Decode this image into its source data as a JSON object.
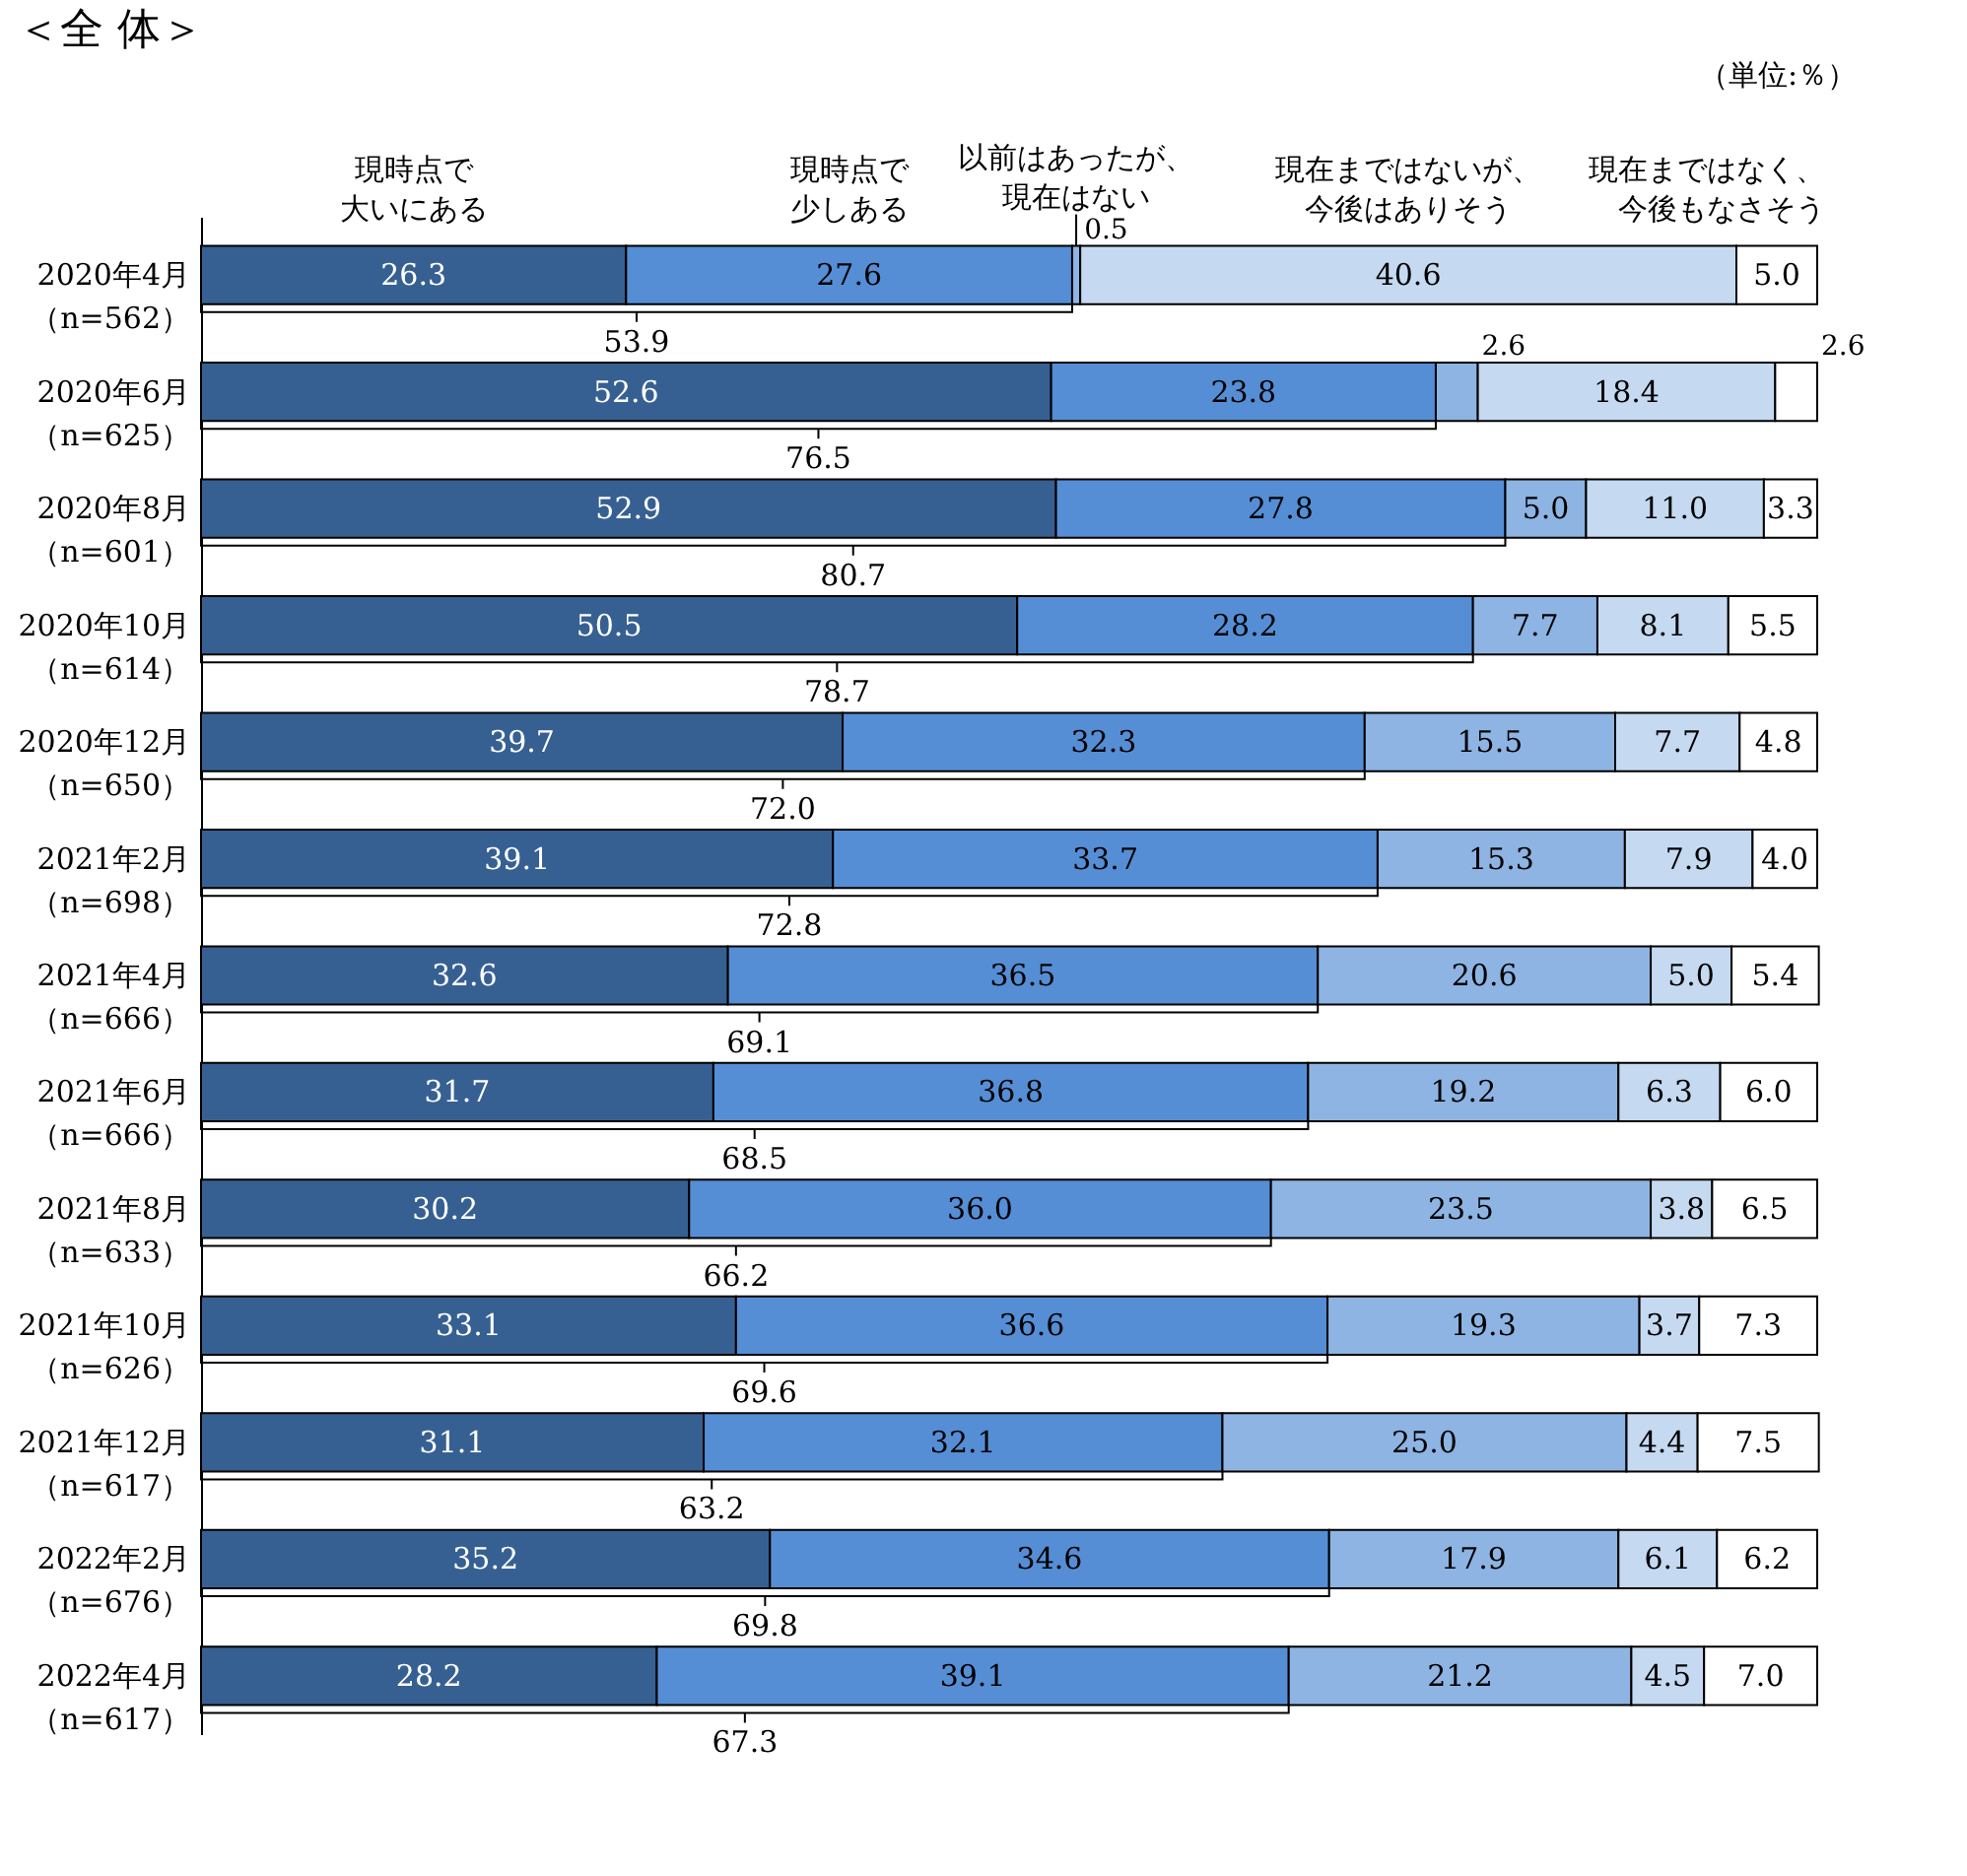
{
  "chart_data": {
    "type": "bar",
    "orientation": "horizontal",
    "stacked": true,
    "title": "＜全 体＞",
    "tick_labels": "y",
    "xlim": [
      0,
      100
    ],
    "categories": [
      "2020年4月（n=562）",
      "2020年6月（n=625）",
      "2020年8月（n=601）",
      "2020年10月（n=614）",
      "2020年12月（n=650）",
      "2021年2月（n=698）",
      "2021年4月（n=666）",
      "2021年6月（n=666）",
      "2021年8月（n=633）",
      "2021年10月（n=626）",
      "2021年12月（n=617）",
      "2022年2月（n=676）",
      "2022年4月（n=617）"
    ],
    "series": [
      {
        "name": "現時点で大いにある",
        "color": "#376092",
        "values": [
          26.3,
          52.6,
          52.9,
          50.5,
          39.7,
          39.1,
          32.6,
          31.7,
          30.2,
          33.1,
          31.1,
          35.2,
          28.2
        ],
        "value_labels": [
          "26.3",
          "52.6",
          "52.9",
          "50.5",
          "39.7",
          "39.1",
          "32.6",
          "31.7",
          "30.2",
          "33.1",
          "31.1",
          "35.2",
          "28.2"
        ]
      },
      {
        "name": "現時点で少しある",
        "color": "#558ed5",
        "values": [
          27.6,
          23.8,
          27.8,
          28.2,
          32.3,
          33.7,
          36.5,
          36.8,
          36.0,
          36.6,
          32.1,
          34.6,
          39.1
        ],
        "value_labels": [
          "27.6",
          "23.8",
          "27.8",
          "28.2",
          "32.3",
          "33.7",
          "36.5",
          "36.8",
          "36.0",
          "36.6",
          "32.1",
          "34.6",
          "39.1"
        ]
      },
      {
        "name": "以前はあったが、現在はない",
        "color": "#8db4e2",
        "values": [
          0.5,
          2.6,
          5.0,
          7.7,
          15.5,
          15.3,
          20.6,
          19.2,
          23.5,
          19.3,
          25.0,
          17.9,
          21.2
        ],
        "value_labels": [
          "0.5",
          "2.6",
          "5.0",
          "7.7",
          "15.5",
          "15.3",
          "20.6",
          "19.2",
          "23.5",
          "19.3",
          "25.0",
          "17.9",
          "21.2"
        ]
      },
      {
        "name": "現在まではないが、今後はありそう",
        "color": "#c5d9f1",
        "values": [
          40.6,
          18.4,
          11.0,
          8.1,
          7.7,
          7.9,
          5.0,
          6.3,
          3.8,
          3.7,
          4.4,
          6.1,
          4.5
        ],
        "value_labels": [
          "40.6",
          "18.4",
          "11.0",
          "8.1",
          "7.7",
          "7.9",
          "5.0",
          "6.3",
          "3.8",
          "3.7",
          "4.4",
          "6.1",
          "4.5"
        ]
      },
      {
        "name": "現在まではなく、今後もなさそう",
        "color": "#ffffff",
        "values": [
          5.0,
          2.6,
          3.3,
          5.5,
          4.8,
          4.0,
          5.4,
          6.0,
          6.5,
          7.3,
          7.5,
          6.2,
          7.0
        ],
        "value_labels": [
          "5.0",
          "2.6",
          "3.3",
          "5.5",
          "4.8",
          "4.0",
          "5.4",
          "6.0",
          "6.5",
          "7.3",
          "7.5",
          "6.2",
          "7.0"
        ]
      }
    ],
    "annotations": [
      "（単位:％）",
      {
        "text": "53.9",
        "y": "2020年4月（n=562）"
      },
      {
        "text": "76.5",
        "y": "2020年6月（n=625）"
      },
      {
        "text": "80.7",
        "y": "2020年8月（n=601）"
      },
      {
        "text": "78.7",
        "y": "2020年10月（n=614）"
      },
      {
        "text": "72.0",
        "y": "2020年12月（n=650）"
      },
      {
        "text": "72.8",
        "y": "2021年2月（n=698）"
      },
      {
        "text": "69.1",
        "y": "2021年4月（n=666）"
      },
      {
        "text": "68.5",
        "y": "2021年6月（n=666）"
      },
      {
        "text": "66.2",
        "y": "2021年8月（n=633）"
      },
      {
        "text": "69.6",
        "y": "2021年10月（n=626）"
      },
      {
        "text": "63.2",
        "y": "2021年12月（n=617）"
      },
      {
        "text": "69.8",
        "y": "2022年2月（n=676）"
      },
      {
        "text": "67.3",
        "y": "2022年4月（n=617）"
      }
    ]
  }
}
